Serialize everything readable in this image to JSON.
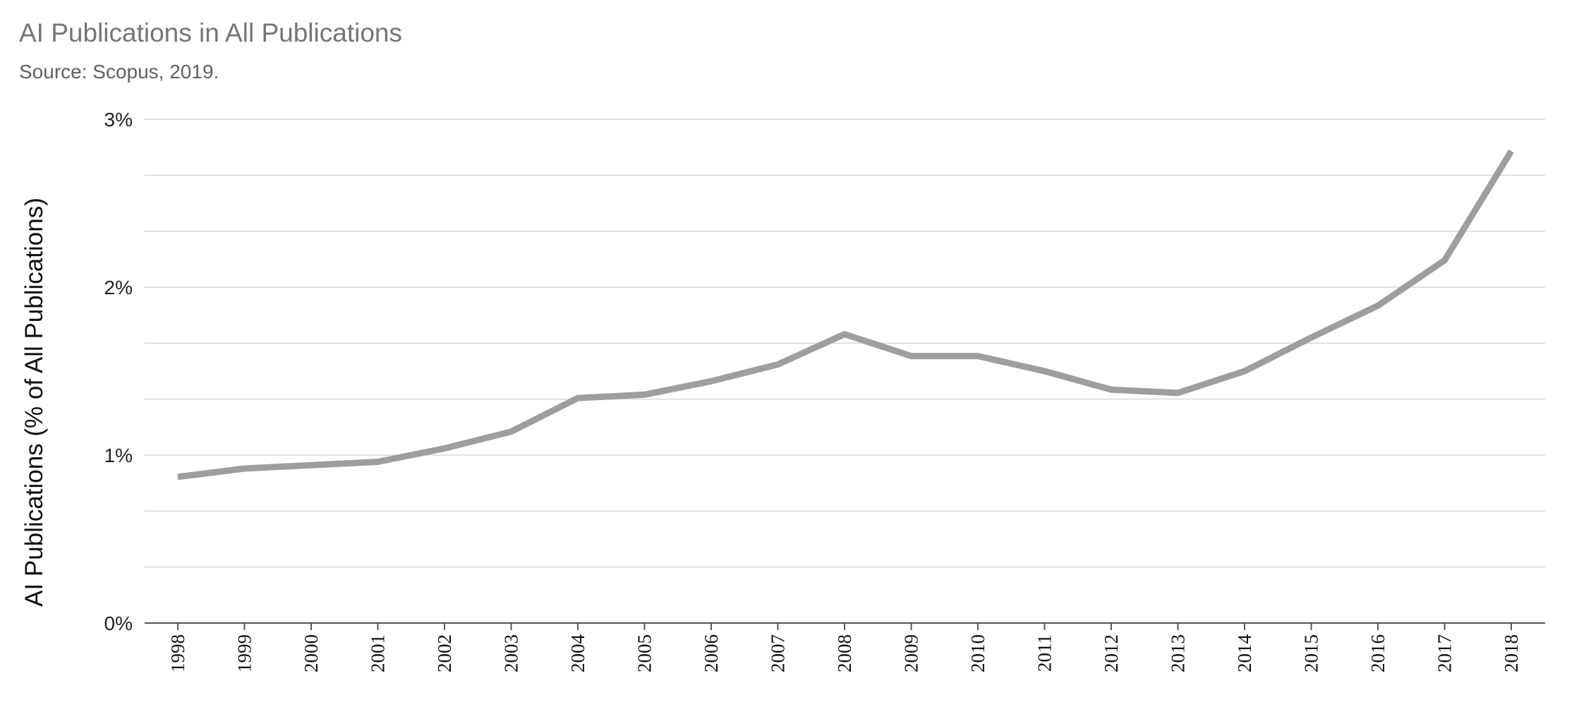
{
  "chart_data": {
    "type": "line",
    "title": "AI Publications in All Publications",
    "subtitle": "Source: Scopus, 2019.",
    "xlabel": "",
    "ylabel": "AI Publications (% of All Publications)",
    "ylim": [
      0,
      3
    ],
    "yticks": [
      0,
      1,
      2,
      3
    ],
    "ytick_labels": [
      "0%",
      "1%",
      "2%",
      "3%"
    ],
    "minor_gridlines_per_major": 3,
    "grid": true,
    "legend": "none",
    "x": [
      "1998",
      "1999",
      "2000",
      "2001",
      "2002",
      "2003",
      "2004",
      "2005",
      "2006",
      "2007",
      "2008",
      "2009",
      "2010",
      "2011",
      "2012",
      "2013",
      "2014",
      "2015",
      "2016",
      "2017",
      "2018"
    ],
    "series": [
      {
        "color": "#9e9e9e",
        "values": [
          0.87,
          0.92,
          0.94,
          0.96,
          1.04,
          1.14,
          1.34,
          1.36,
          1.44,
          1.54,
          1.72,
          1.59,
          1.59,
          1.5,
          1.39,
          1.37,
          1.5,
          1.7,
          1.89,
          2.16,
          2.81
        ]
      }
    ]
  }
}
